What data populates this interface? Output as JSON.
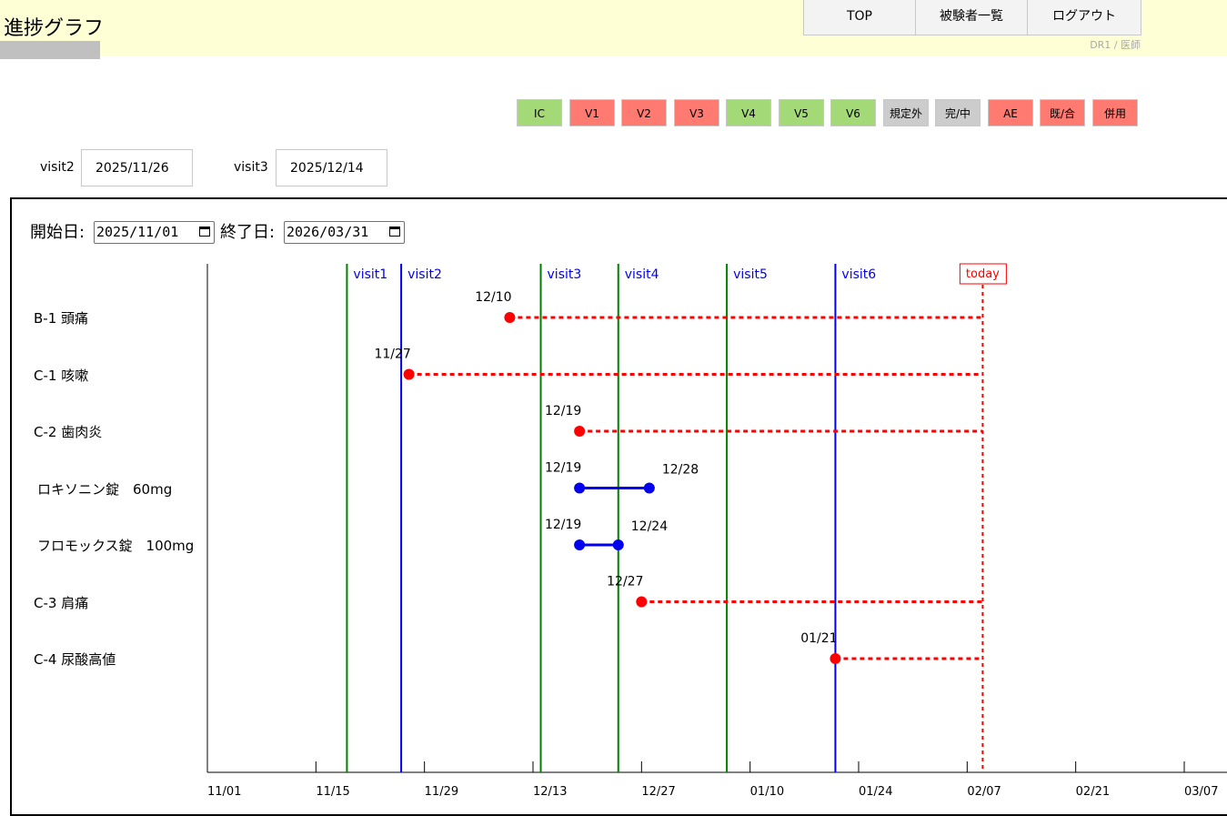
{
  "header": {
    "title": "進捗グラフ",
    "nav": [
      "TOP",
      "被験者一覧",
      "ログアウト"
    ],
    "user_role": "DR1 / 医師"
  },
  "legend": [
    {
      "label": "IC",
      "color": "#a3d977"
    },
    {
      "label": "V1",
      "color": "#ff7a70"
    },
    {
      "label": "V2",
      "color": "#ff7a70"
    },
    {
      "label": "V3",
      "color": "#ff7a70"
    },
    {
      "label": "V4",
      "color": "#a3d977"
    },
    {
      "label": "V5",
      "color": "#a3d977"
    },
    {
      "label": "V6",
      "color": "#a3d977"
    },
    {
      "label": "規定外",
      "color": "#cccccc"
    },
    {
      "label": "完/中",
      "color": "#cccccc"
    },
    {
      "label": "AE",
      "color": "#ff7a70"
    },
    {
      "label": "既/合",
      "color": "#ff7a70"
    },
    {
      "label": "併用",
      "color": "#ff7a70"
    }
  ],
  "visit_fields": [
    {
      "label": "visit2",
      "value": "2025/11/26"
    },
    {
      "label": "visit3",
      "value": "2025/12/14"
    }
  ],
  "range": {
    "start_label": "開始日:",
    "start_value": "2025/11/01",
    "end_label": "終了日:",
    "end_value": "2026/03/31"
  },
  "chart_data": {
    "type": "timeline",
    "x_axis": {
      "type": "date",
      "range": [
        "2025-11-01",
        "2026-03-09"
      ],
      "ticks": [
        "2025-11-01",
        "2025-11-15",
        "2025-11-29",
        "2025-12-13",
        "2025-12-27",
        "2026-01-10",
        "2026-01-24",
        "2026-02-07",
        "2026-02-21",
        "2026-03-07"
      ],
      "tick_labels": [
        "11/01",
        "11/15",
        "11/29",
        "12/13",
        "12/27",
        "01/10",
        "01/24",
        "02/07",
        "02/21",
        "03/07"
      ]
    },
    "visits": [
      {
        "label": "visit1",
        "date": "2025-11-19",
        "color": "#008000"
      },
      {
        "label": "visit2",
        "date": "2025-11-26",
        "color": "#0000ee"
      },
      {
        "label": "visit3",
        "date": "2025-12-14",
        "color": "#008000"
      },
      {
        "label": "visit4",
        "date": "2025-12-24",
        "color": "#008000"
      },
      {
        "label": "visit5",
        "date": "2026-01-07",
        "color": "#008000"
      },
      {
        "label": "visit6",
        "date": "2026-01-21",
        "color": "#0000ee"
      }
    ],
    "today": {
      "label": "today",
      "date": "2026-02-09",
      "color": "#ff0000"
    },
    "events": [
      {
        "label": "B-1 頭痛",
        "start": "2025-12-10",
        "start_label": "12/10",
        "kind": "ongoing",
        "color": "#ff0000"
      },
      {
        "label": "C-1 咳嗽",
        "start": "2025-11-27",
        "start_label": "11/27",
        "kind": "ongoing",
        "color": "#ff0000"
      },
      {
        "label": "C-2 歯肉炎",
        "start": "2025-12-19",
        "start_label": "12/19",
        "kind": "ongoing",
        "color": "#ff0000"
      },
      {
        "label": "ロキソニン錠　60mg",
        "start": "2025-12-19",
        "start_label": "12/19",
        "end": "2025-12-28",
        "end_label": "12/28",
        "kind": "range",
        "color": "#0000ee"
      },
      {
        "label": "フロモックス錠　100mg",
        "start": "2025-12-19",
        "start_label": "12/19",
        "end": "2025-12-24",
        "end_label": "12/24",
        "kind": "range",
        "color": "#0000ee"
      },
      {
        "label": "C-3 肩痛",
        "start": "2025-12-27",
        "start_label": "12/27",
        "kind": "ongoing",
        "color": "#ff0000"
      },
      {
        "label": "C-4 尿酸高値",
        "start": "2026-01-21",
        "start_label": "01/21",
        "kind": "ongoing",
        "color": "#ff0000"
      }
    ]
  }
}
